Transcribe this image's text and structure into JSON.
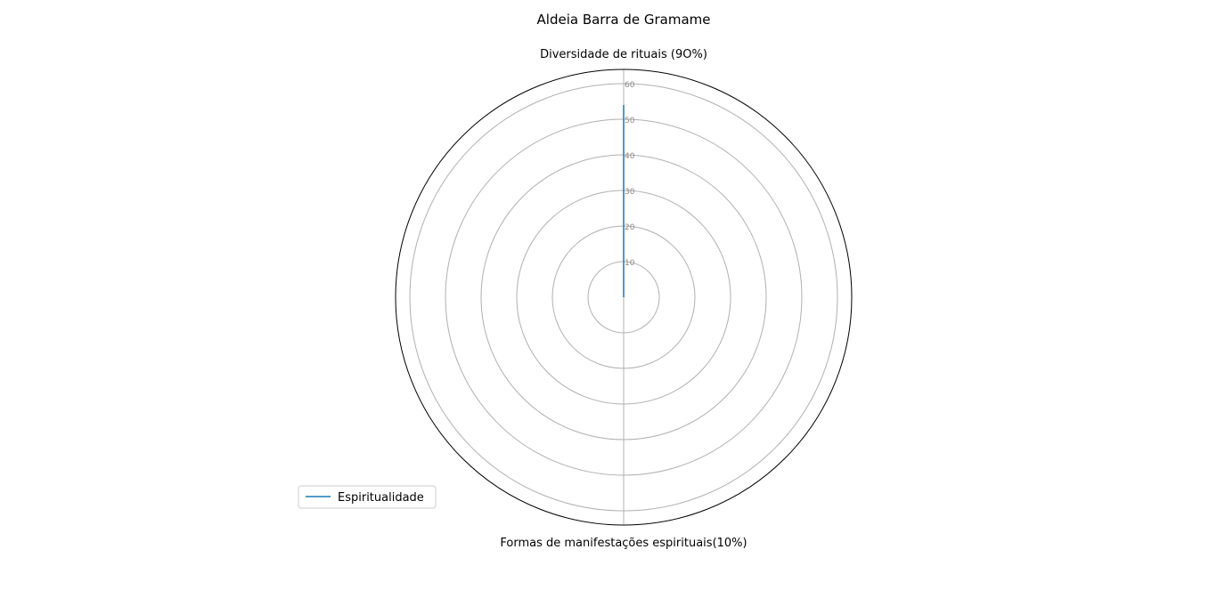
{
  "chart_data": {
    "type": "radar",
    "title": "Aldeia Barra de Gramame",
    "categories": [
      "Diversidade de rituais (9O%)",
      "Formas de manifestações espirituais(10%)"
    ],
    "series": [
      {
        "name": "Espiritualidade",
        "values": [
          54,
          0
        ]
      }
    ],
    "r_ticks": [
      10,
      20,
      30,
      40,
      50,
      60
    ],
    "rlim": [
      0,
      64
    ],
    "grid": true,
    "legend_position": "lower-left"
  },
  "colors": {
    "series": "#1f77b4",
    "grid": "#b0b0b0",
    "frame": "#000000",
    "tick_text": "#888888",
    "legend_border": "#cccccc"
  }
}
